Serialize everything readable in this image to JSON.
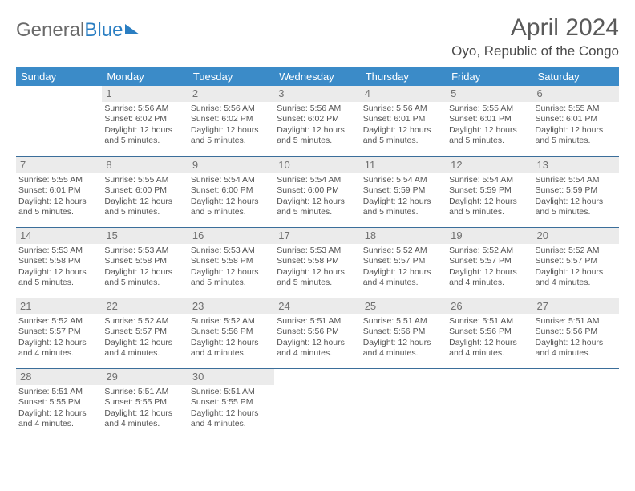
{
  "brand": {
    "part1": "General",
    "part2": "Blue"
  },
  "title": "April 2024",
  "location": "Oyo, Republic of the Congo",
  "colors": {
    "header_bg": "#3b8bc8",
    "header_fg": "#ffffff",
    "daynum_bg": "#ebebeb",
    "daynum_fg": "#707070",
    "rule": "#3b6e9a",
    "brand_blue": "#2a7ec2",
    "text": "#555555"
  },
  "weekdays": [
    "Sunday",
    "Monday",
    "Tuesday",
    "Wednesday",
    "Thursday",
    "Friday",
    "Saturday"
  ],
  "layout": {
    "first_weekday_index": 1,
    "days_in_month": 30
  },
  "days": {
    "1": {
      "sr": "5:56 AM",
      "ss": "6:02 PM",
      "dl": "12 hours and 5 minutes."
    },
    "2": {
      "sr": "5:56 AM",
      "ss": "6:02 PM",
      "dl": "12 hours and 5 minutes."
    },
    "3": {
      "sr": "5:56 AM",
      "ss": "6:02 PM",
      "dl": "12 hours and 5 minutes."
    },
    "4": {
      "sr": "5:56 AM",
      "ss": "6:01 PM",
      "dl": "12 hours and 5 minutes."
    },
    "5": {
      "sr": "5:55 AM",
      "ss": "6:01 PM",
      "dl": "12 hours and 5 minutes."
    },
    "6": {
      "sr": "5:55 AM",
      "ss": "6:01 PM",
      "dl": "12 hours and 5 minutes."
    },
    "7": {
      "sr": "5:55 AM",
      "ss": "6:01 PM",
      "dl": "12 hours and 5 minutes."
    },
    "8": {
      "sr": "5:55 AM",
      "ss": "6:00 PM",
      "dl": "12 hours and 5 minutes."
    },
    "9": {
      "sr": "5:54 AM",
      "ss": "6:00 PM",
      "dl": "12 hours and 5 minutes."
    },
    "10": {
      "sr": "5:54 AM",
      "ss": "6:00 PM",
      "dl": "12 hours and 5 minutes."
    },
    "11": {
      "sr": "5:54 AM",
      "ss": "5:59 PM",
      "dl": "12 hours and 5 minutes."
    },
    "12": {
      "sr": "5:54 AM",
      "ss": "5:59 PM",
      "dl": "12 hours and 5 minutes."
    },
    "13": {
      "sr": "5:54 AM",
      "ss": "5:59 PM",
      "dl": "12 hours and 5 minutes."
    },
    "14": {
      "sr": "5:53 AM",
      "ss": "5:58 PM",
      "dl": "12 hours and 5 minutes."
    },
    "15": {
      "sr": "5:53 AM",
      "ss": "5:58 PM",
      "dl": "12 hours and 5 minutes."
    },
    "16": {
      "sr": "5:53 AM",
      "ss": "5:58 PM",
      "dl": "12 hours and 5 minutes."
    },
    "17": {
      "sr": "5:53 AM",
      "ss": "5:58 PM",
      "dl": "12 hours and 5 minutes."
    },
    "18": {
      "sr": "5:52 AM",
      "ss": "5:57 PM",
      "dl": "12 hours and 4 minutes."
    },
    "19": {
      "sr": "5:52 AM",
      "ss": "5:57 PM",
      "dl": "12 hours and 4 minutes."
    },
    "20": {
      "sr": "5:52 AM",
      "ss": "5:57 PM",
      "dl": "12 hours and 4 minutes."
    },
    "21": {
      "sr": "5:52 AM",
      "ss": "5:57 PM",
      "dl": "12 hours and 4 minutes."
    },
    "22": {
      "sr": "5:52 AM",
      "ss": "5:57 PM",
      "dl": "12 hours and 4 minutes."
    },
    "23": {
      "sr": "5:52 AM",
      "ss": "5:56 PM",
      "dl": "12 hours and 4 minutes."
    },
    "24": {
      "sr": "5:51 AM",
      "ss": "5:56 PM",
      "dl": "12 hours and 4 minutes."
    },
    "25": {
      "sr": "5:51 AM",
      "ss": "5:56 PM",
      "dl": "12 hours and 4 minutes."
    },
    "26": {
      "sr": "5:51 AM",
      "ss": "5:56 PM",
      "dl": "12 hours and 4 minutes."
    },
    "27": {
      "sr": "5:51 AM",
      "ss": "5:56 PM",
      "dl": "12 hours and 4 minutes."
    },
    "28": {
      "sr": "5:51 AM",
      "ss": "5:55 PM",
      "dl": "12 hours and 4 minutes."
    },
    "29": {
      "sr": "5:51 AM",
      "ss": "5:55 PM",
      "dl": "12 hours and 4 minutes."
    },
    "30": {
      "sr": "5:51 AM",
      "ss": "5:55 PM",
      "dl": "12 hours and 4 minutes."
    }
  },
  "labels": {
    "sunrise": "Sunrise: ",
    "sunset": "Sunset: ",
    "daylight": "Daylight: "
  }
}
